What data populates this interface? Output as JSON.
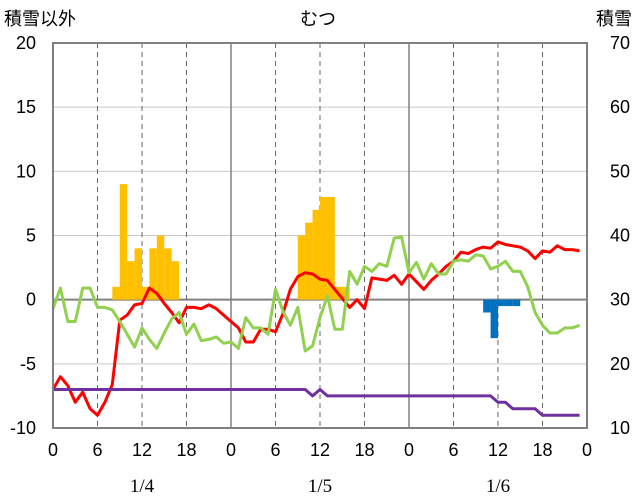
{
  "chart_data": {
    "type": "line",
    "title": "むつ",
    "left_axis": {
      "label": "積雪以外",
      "ticks": [
        20,
        15,
        10,
        5,
        0,
        -5,
        -10
      ],
      "range": [
        -10,
        20
      ]
    },
    "right_axis": {
      "label": "積雪",
      "ticks": [
        70,
        60,
        50,
        40,
        30,
        20,
        10
      ],
      "range": [
        10,
        70
      ]
    },
    "x_axis": {
      "range": [
        0,
        72
      ],
      "ticks": [
        0,
        6,
        12,
        18,
        24,
        30,
        36,
        42,
        48,
        54,
        60,
        66,
        72
      ],
      "tick_labels": [
        "0",
        "6",
        "12",
        "18",
        "0",
        "6",
        "12",
        "18",
        "0",
        "6",
        "12",
        "18",
        "0"
      ],
      "date_labels": [
        {
          "x": 12,
          "text": "1/4"
        },
        {
          "x": 36,
          "text": "1/5"
        },
        {
          "x": 60,
          "text": "1/6"
        }
      ]
    },
    "bars_snow": {
      "color": "#FFC000",
      "axis": "left",
      "x": [
        8,
        9,
        10,
        11,
        12,
        13,
        14,
        15,
        16,
        33,
        34,
        35,
        36,
        37,
        38,
        39
      ],
      "values": [
        1,
        9,
        3,
        4,
        1,
        4,
        5,
        4,
        3,
        5,
        6,
        7,
        8,
        8,
        1,
        1
      ]
    },
    "bars_blue": {
      "color": "#0070C0",
      "axis": "left",
      "x": [
        58,
        59,
        60,
        61,
        62
      ],
      "values": [
        -1,
        -3,
        -0.5,
        -0.5,
        -0.5
      ]
    },
    "series": [
      {
        "color": "#FF0000",
        "axis": "left",
        "x": [
          0,
          1,
          2,
          3,
          4,
          5,
          6,
          7,
          8,
          9,
          10,
          11,
          12,
          13,
          14,
          15,
          16,
          17,
          18,
          19,
          20,
          21,
          22,
          23,
          24,
          25,
          26,
          27,
          28,
          29,
          30,
          31,
          32,
          33,
          34,
          35,
          36,
          37,
          38,
          39,
          40,
          41,
          42,
          43,
          44,
          45,
          46,
          47,
          48,
          49,
          50,
          51,
          52,
          53,
          54,
          55,
          56,
          57,
          58,
          59,
          60,
          61,
          62,
          63,
          64,
          65,
          66,
          67,
          68,
          69,
          70,
          71
        ],
        "values": [
          -7,
          -6,
          -6.7,
          -8,
          -7.2,
          -8.5,
          -9,
          -8,
          -6.6,
          -1.6,
          -1.2,
          -0.4,
          -0.3,
          0.9,
          0.5,
          -0.3,
          -1,
          -1.8,
          -0.6,
          -0.6,
          -0.7,
          -0.4,
          -0.7,
          -1.2,
          -1.7,
          -2.2,
          -3.3,
          -3.3,
          -2.3,
          -2.3,
          -2.5,
          -1.1,
          0.8,
          1.8,
          2.1,
          2,
          1.6,
          1.5,
          0.8,
          0.1,
          -0.6,
          0,
          -0.7,
          1.7,
          1.6,
          1.5,
          1.9,
          1.2,
          2,
          1.4,
          0.8,
          1.5,
          2,
          2.6,
          3,
          3.7,
          3.6,
          3.9,
          4.1,
          4,
          4.5,
          4.3,
          4.2,
          4.1,
          3.8,
          3.2,
          3.8,
          3.7,
          4.2,
          3.9,
          3.9,
          3.8
        ]
      },
      {
        "color": "#92D050",
        "axis": "left",
        "x": [
          0,
          1,
          2,
          3,
          4,
          5,
          6,
          7,
          8,
          9,
          10,
          11,
          12,
          13,
          14,
          15,
          16,
          17,
          18,
          19,
          20,
          21,
          22,
          23,
          24,
          25,
          26,
          27,
          28,
          29,
          30,
          31,
          32,
          33,
          34,
          35,
          36,
          37,
          38,
          39,
          40,
          41,
          42,
          43,
          44,
          45,
          46,
          47,
          48,
          49,
          50,
          51,
          52,
          53,
          54,
          55,
          56,
          57,
          58,
          59,
          60,
          61,
          62,
          63,
          64,
          65,
          66,
          67,
          68,
          69,
          70,
          71
        ],
        "values": [
          -0.7,
          0.9,
          -1.7,
          -1.7,
          0.9,
          0.9,
          -0.6,
          -0.6,
          -0.8,
          -1.7,
          -2.7,
          -3.7,
          -2.2,
          -3.1,
          -3.8,
          -2.6,
          -1.5,
          -1,
          -2.7,
          -1.9,
          -3.2,
          -3.1,
          -2.9,
          -3.4,
          -3.3,
          -3.8,
          -1.4,
          -2.2,
          -2.2,
          -2.7,
          0.8,
          -0.9,
          -2,
          -0.6,
          -4,
          -3.6,
          -1.4,
          0.3,
          -2.3,
          -2.3,
          2.2,
          1.2,
          2.6,
          2.2,
          2.8,
          2.6,
          4.8,
          4.9,
          2.1,
          2.9,
          1.6,
          2.8,
          2,
          2,
          3,
          3.1,
          3,
          3.5,
          3.4,
          2.4,
          2.6,
          3,
          2.2,
          2.2,
          1,
          -1,
          -2,
          -2.6,
          -2.6,
          -2.2,
          -2.2,
          -2.0
        ]
      },
      {
        "color": "#7030A0",
        "axis": "left",
        "x": [
          0,
          34,
          35,
          36,
          37,
          38,
          59,
          60,
          61,
          62,
          63,
          64,
          65,
          66,
          67,
          68,
          69,
          70,
          71
        ],
        "values": [
          -7,
          -7,
          -7.5,
          -7,
          -7.5,
          -7.5,
          -7.5,
          -8,
          -8,
          -8.5,
          -8.5,
          -8.5,
          -8.5,
          -9,
          -9,
          -9,
          -9,
          -9,
          -9
        ]
      }
    ]
  }
}
